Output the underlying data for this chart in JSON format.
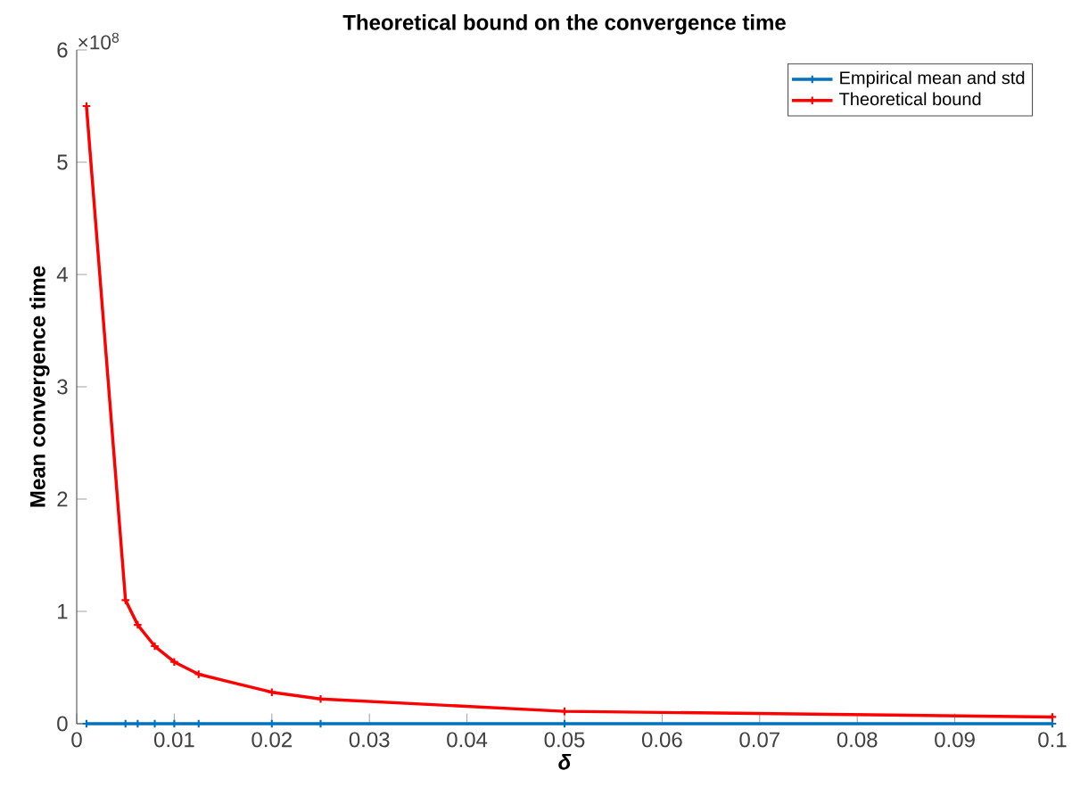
{
  "chart_data": {
    "type": "line",
    "title": "Theoretical bound on the convergence time",
    "xlabel": "δ",
    "ylabel": "Mean convergence time",
    "annotations": [
      "×10$^{8}$"
    ],
    "x": [
      0.001,
      0.005,
      0.00625,
      0.008,
      0.01,
      0.0125,
      0.02,
      0.025,
      0.05,
      0.1
    ],
    "series": [
      {
        "name": "Empirical mean and std",
        "color": "#0072bd",
        "values": [
          0,
          0,
          0,
          0,
          0,
          0,
          0,
          0,
          0,
          0
        ]
      },
      {
        "name": "Theoretical bound",
        "color": "#ff0000",
        "values": [
          5.5,
          1.1,
          0.88,
          0.69,
          0.55,
          0.44,
          0.28,
          0.22,
          0.11,
          0.06
        ]
      }
    ],
    "xlim": [
      0,
      0.1
    ],
    "xticks": [
      0,
      0.01,
      0.02,
      0.03,
      0.04,
      0.05,
      0.06,
      0.07,
      0.08,
      0.09,
      0.1
    ],
    "ylim": [
      0,
      6
    ],
    "yticks": [
      0,
      1,
      2,
      3,
      4,
      5,
      6
    ],
    "legend": "top right",
    "marker": "cross",
    "line_style": "solid",
    "grid": false
  }
}
